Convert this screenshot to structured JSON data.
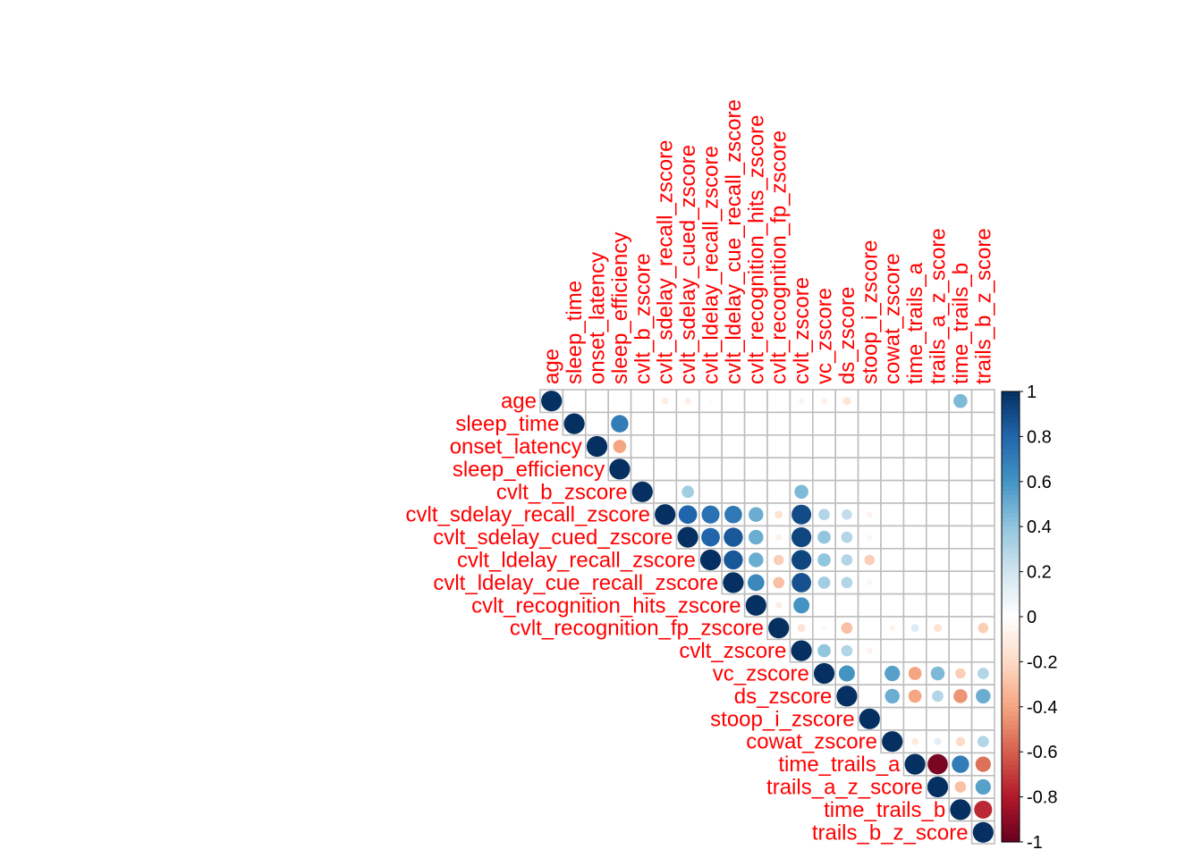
{
  "chart_data": {
    "type": "heatmap",
    "style": "corrplot-circle-upper",
    "variables": [
      "age",
      "sleep_time",
      "onset_latency",
      "sleep_efficiency",
      "cvlt_b_zscore",
      "cvlt_sdelay_recall_zscore",
      "cvlt_sdelay_cued_zscore",
      "cvlt_ldelay_recall_zscore",
      "cvlt_ldelay_cue_recall_zscore",
      "cvlt_recognition_hits_zscore",
      "cvlt_recognition_fp_zscore",
      "cvlt_zscore",
      "vc_zscore",
      "ds_zscore",
      "stoop_i_zscore",
      "cowat_zscore",
      "time_trails_a",
      "trails_a_z_score",
      "time_trails_b",
      "trails_b_z_score"
    ],
    "colorbar_ticks": [
      "1",
      "0.8",
      "0.6",
      "0.4",
      "0.2",
      "0",
      "-0.2",
      "-0.4",
      "-0.6",
      "-0.8",
      "-1"
    ],
    "colorbar_range": [
      -1,
      1
    ],
    "label_color": "#ff0000",
    "grid_color": "#bebebe",
    "color_scale": [
      "#67001f",
      "#b2182b",
      "#d6604d",
      "#f4a582",
      "#fddbc7",
      "#ffffff",
      "#d1e5f0",
      "#92c5de",
      "#4393c3",
      "#2166ac",
      "#053061"
    ],
    "correlations": [
      {
        "row": 0,
        "col": 0,
        "r": 1
      },
      {
        "row": 0,
        "col": 5,
        "r": -0.1
      },
      {
        "row": 0,
        "col": 6,
        "r": -0.1
      },
      {
        "row": 0,
        "col": 7,
        "r": -0.03
      },
      {
        "row": 0,
        "col": 11,
        "r": -0.06
      },
      {
        "row": 0,
        "col": 12,
        "r": -0.08
      },
      {
        "row": 0,
        "col": 13,
        "r": -0.15
      },
      {
        "row": 0,
        "col": 18,
        "r": 0.45
      },
      {
        "row": 1,
        "col": 1,
        "r": 1
      },
      {
        "row": 1,
        "col": 3,
        "r": 0.7
      },
      {
        "row": 2,
        "col": 2,
        "r": 1
      },
      {
        "row": 2,
        "col": 3,
        "r": -0.4
      },
      {
        "row": 3,
        "col": 3,
        "r": 1
      },
      {
        "row": 4,
        "col": 4,
        "r": 1
      },
      {
        "row": 4,
        "col": 6,
        "r": 0.35
      },
      {
        "row": 4,
        "col": 11,
        "r": 0.45
      },
      {
        "row": 5,
        "col": 5,
        "r": 1
      },
      {
        "row": 5,
        "col": 6,
        "r": 0.8
      },
      {
        "row": 5,
        "col": 7,
        "r": 0.75
      },
      {
        "row": 5,
        "col": 8,
        "r": 0.72
      },
      {
        "row": 5,
        "col": 9,
        "r": 0.5
      },
      {
        "row": 5,
        "col": 10,
        "r": -0.15
      },
      {
        "row": 5,
        "col": 11,
        "r": 0.9
      },
      {
        "row": 5,
        "col": 12,
        "r": 0.3
      },
      {
        "row": 5,
        "col": 13,
        "r": 0.25
      },
      {
        "row": 5,
        "col": 14,
        "r": -0.08
      },
      {
        "row": 6,
        "col": 6,
        "r": 1
      },
      {
        "row": 6,
        "col": 7,
        "r": 0.8
      },
      {
        "row": 6,
        "col": 8,
        "r": 0.85
      },
      {
        "row": 6,
        "col": 9,
        "r": 0.5
      },
      {
        "row": 6,
        "col": 10,
        "r": -0.08
      },
      {
        "row": 6,
        "col": 11,
        "r": 0.92
      },
      {
        "row": 6,
        "col": 12,
        "r": 0.4
      },
      {
        "row": 6,
        "col": 13,
        "r": 0.3
      },
      {
        "row": 6,
        "col": 14,
        "r": -0.06
      },
      {
        "row": 7,
        "col": 7,
        "r": 1
      },
      {
        "row": 7,
        "col": 8,
        "r": 0.85
      },
      {
        "row": 7,
        "col": 9,
        "r": 0.5
      },
      {
        "row": 7,
        "col": 10,
        "r": -0.25
      },
      {
        "row": 7,
        "col": 11,
        "r": 0.92
      },
      {
        "row": 7,
        "col": 12,
        "r": 0.4
      },
      {
        "row": 7,
        "col": 13,
        "r": 0.3
      },
      {
        "row": 7,
        "col": 14,
        "r": -0.25
      },
      {
        "row": 8,
        "col": 8,
        "r": 1
      },
      {
        "row": 8,
        "col": 9,
        "r": 0.65
      },
      {
        "row": 8,
        "col": 10,
        "r": -0.3
      },
      {
        "row": 8,
        "col": 11,
        "r": 0.88
      },
      {
        "row": 8,
        "col": 12,
        "r": 0.35
      },
      {
        "row": 8,
        "col": 13,
        "r": 0.3
      },
      {
        "row": 8,
        "col": 14,
        "r": -0.06
      },
      {
        "row": 9,
        "col": 9,
        "r": 1
      },
      {
        "row": 9,
        "col": 10,
        "r": -0.1
      },
      {
        "row": 9,
        "col": 11,
        "r": 0.6
      },
      {
        "row": 10,
        "col": 10,
        "r": 1
      },
      {
        "row": 10,
        "col": 11,
        "r": -0.15
      },
      {
        "row": 10,
        "col": 12,
        "r": -0.05
      },
      {
        "row": 10,
        "col": 13,
        "r": -0.3
      },
      {
        "row": 10,
        "col": 15,
        "r": -0.08
      },
      {
        "row": 10,
        "col": 16,
        "r": 0.15
      },
      {
        "row": 10,
        "col": 17,
        "r": -0.15
      },
      {
        "row": 10,
        "col": 19,
        "r": -0.25
      },
      {
        "row": 11,
        "col": 11,
        "r": 1
      },
      {
        "row": 11,
        "col": 12,
        "r": 0.4
      },
      {
        "row": 11,
        "col": 13,
        "r": 0.3
      },
      {
        "row": 11,
        "col": 14,
        "r": -0.08
      },
      {
        "row": 12,
        "col": 12,
        "r": 1
      },
      {
        "row": 12,
        "col": 13,
        "r": 0.6
      },
      {
        "row": 12,
        "col": 15,
        "r": 0.55
      },
      {
        "row": 12,
        "col": 16,
        "r": -0.4
      },
      {
        "row": 12,
        "col": 17,
        "r": 0.45
      },
      {
        "row": 12,
        "col": 18,
        "r": -0.25
      },
      {
        "row": 12,
        "col": 19,
        "r": 0.3
      },
      {
        "row": 13,
        "col": 13,
        "r": 1
      },
      {
        "row": 13,
        "col": 15,
        "r": 0.5
      },
      {
        "row": 13,
        "col": 16,
        "r": -0.4
      },
      {
        "row": 13,
        "col": 17,
        "r": 0.3
      },
      {
        "row": 13,
        "col": 18,
        "r": -0.45
      },
      {
        "row": 13,
        "col": 19,
        "r": 0.5
      },
      {
        "row": 14,
        "col": 14,
        "r": 1
      },
      {
        "row": 15,
        "col": 15,
        "r": 1
      },
      {
        "row": 15,
        "col": 16,
        "r": -0.12
      },
      {
        "row": 15,
        "col": 17,
        "r": 0.12
      },
      {
        "row": 15,
        "col": 18,
        "r": -0.2
      },
      {
        "row": 15,
        "col": 19,
        "r": 0.3
      },
      {
        "row": 16,
        "col": 16,
        "r": 1
      },
      {
        "row": 16,
        "col": 17,
        "r": -0.95
      },
      {
        "row": 16,
        "col": 18,
        "r": 0.7
      },
      {
        "row": 16,
        "col": 19,
        "r": -0.55
      },
      {
        "row": 17,
        "col": 17,
        "r": 1
      },
      {
        "row": 17,
        "col": 18,
        "r": -0.3
      },
      {
        "row": 17,
        "col": 19,
        "r": 0.55
      },
      {
        "row": 18,
        "col": 18,
        "r": 1
      },
      {
        "row": 18,
        "col": 19,
        "r": -0.75
      },
      {
        "row": 19,
        "col": 19,
        "r": 1
      }
    ]
  }
}
